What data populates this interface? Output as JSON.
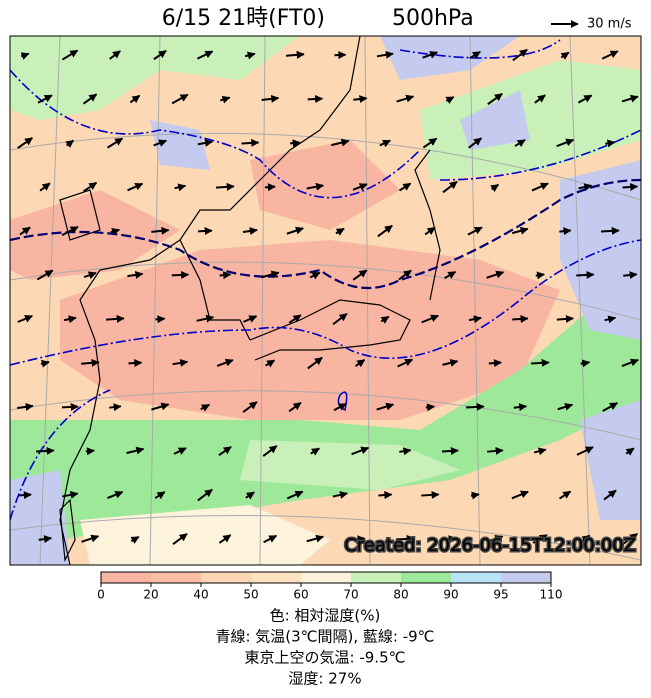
{
  "header": {
    "title": "6/15 21時(FT0)",
    "level": "500hPa",
    "wind_scale": "30 m/s"
  },
  "map": {
    "stamp": "Created: 2026-06-15T12:00:00Z"
  },
  "colorbar": {
    "ticks": [
      0,
      20,
      40,
      50,
      60,
      70,
      80,
      90,
      95,
      110
    ],
    "colors": [
      "#f8b5a2",
      "#f9bfa6",
      "#fcd5b2",
      "#fde2bf",
      "#fdf3dc",
      "#c8f0b8",
      "#9ee89a",
      "#b8e4f8",
      "#c4cbee"
    ]
  },
  "caption": [
    "色: 相対湿度(%)",
    "青線: 気温(3℃間隔), 藍線: -9℃",
    "東京上空の気温: -9.5℃",
    "湿度: 27%"
  ]
}
